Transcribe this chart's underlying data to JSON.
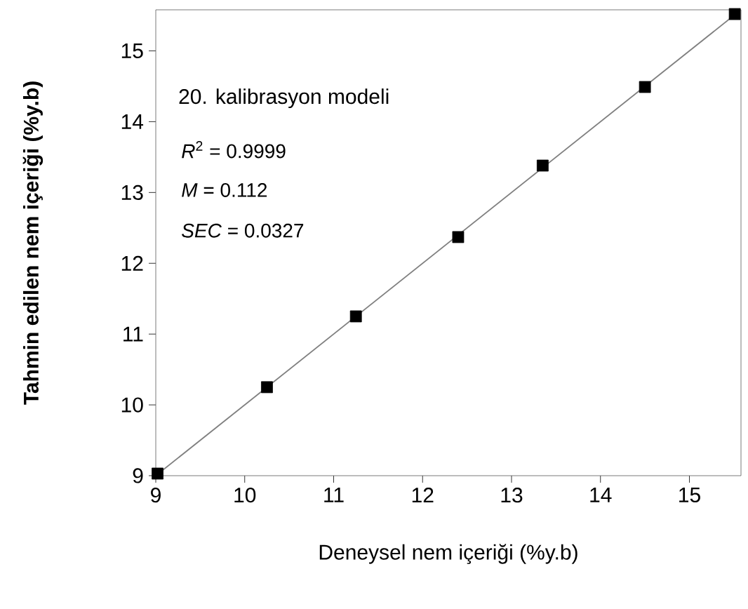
{
  "chart_data": {
    "type": "scatter",
    "xlabel": "Deneysel nem içeriği  (%y.b)",
    "ylabel": "Tahmin edilen nem içeriği  (%y.b)",
    "xlim": [
      9,
      15.58
    ],
    "ylim": [
      9,
      15.58
    ],
    "xticks": [
      9,
      10,
      11,
      12,
      13,
      14,
      15
    ],
    "yticks": [
      9,
      10,
      11,
      12,
      13,
      14,
      15
    ],
    "grid": false,
    "marker": "square",
    "annotations": [
      "20. kalibrasyon modeli",
      "*R*$^{2}$    = 0.9999",
      "*M*      = 0.112",
      "*SEC* = 0.0327"
    ],
    "series": [
      {
        "type": "line",
        "color": "#808080",
        "marker": "none",
        "line_style": "solid",
        "x": [
          9.0,
          15.55
        ],
        "values": [
          9.0,
          15.55
        ]
      },
      {
        "color": "#000000",
        "x": [
          9.02,
          10.25,
          11.25,
          12.4,
          13.35,
          14.5,
          15.51
        ],
        "values": [
          9.03,
          10.25,
          11.25,
          12.37,
          13.38,
          14.49,
          15.52
        ]
      }
    ]
  }
}
